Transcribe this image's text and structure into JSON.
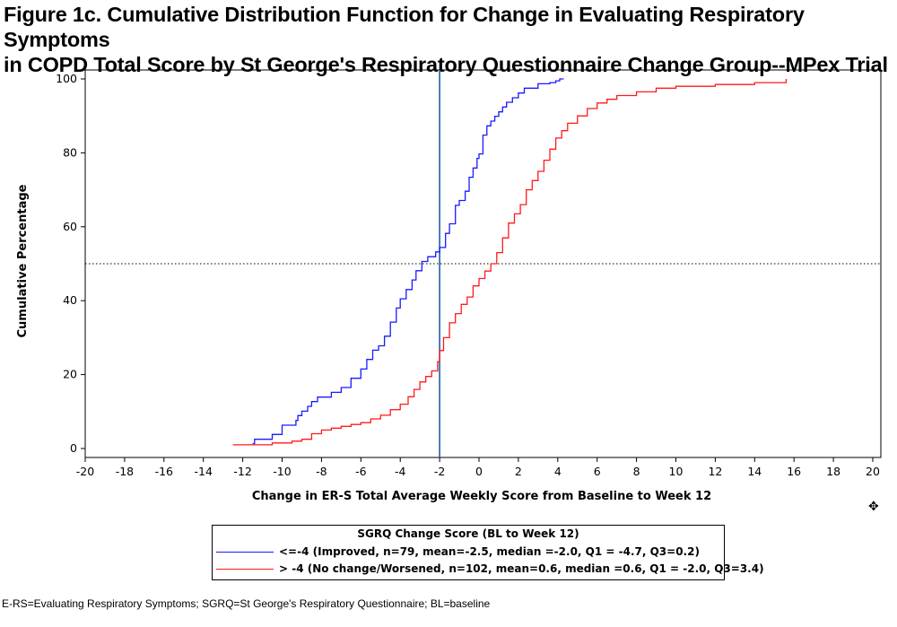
{
  "figure": {
    "title_line1": "Figure 1c. Cumulative Distribution Function for Change in Evaluating Respiratory Symptoms",
    "title_line2": "in COPD Total Score by St George's Respiratory Questionnaire Change Group--MPex Trial",
    "footnote": "E-RS=Evaluating Respiratory Symptoms; SGRQ=St George's Respiratory Questionnaire; BL=baseline",
    "corner_icon": "move-cursor-icon"
  },
  "legend": {
    "title": "SGRQ Change Score (BL to Week 12)",
    "items": [
      {
        "label": "<=-4 (Improved, n=79, mean=-2.5, median =-2.0, Q1 = -4.7, Q3=0.2)",
        "color": "#1a1aff"
      },
      {
        "label": "> -4 (No change/Worsened, n=102, mean=0.6, median =0.6, Q1 = -2.0, Q3=3.4)",
        "color": "#ff1a1a"
      }
    ]
  },
  "chart_data": {
    "type": "line",
    "xlabel": "Change in ER-S Total Average Weekly Score from Baseline to Week 12",
    "ylabel": "Cumulative Percentage",
    "xlim": [
      -20,
      20
    ],
    "ylim": [
      0,
      100
    ],
    "xticks": [
      -20,
      -18,
      -16,
      -14,
      -12,
      -10,
      -8,
      -6,
      -4,
      -2,
      0,
      2,
      4,
      6,
      8,
      10,
      12,
      14,
      16,
      18,
      20
    ],
    "yticks": [
      0,
      20,
      40,
      60,
      80,
      100
    ],
    "reference_lines": [
      {
        "orientation": "vertical",
        "x": -2.0,
        "color": "#1f5fa8",
        "style": "solid"
      },
      {
        "orientation": "horizontal",
        "y": 50,
        "color": "#000000",
        "style": "dotted"
      }
    ],
    "grid": false,
    "legend_position": "bottom",
    "series": [
      {
        "name": "<=-4 (Improved, n=79, mean=-2.5, median =-2.0, Q1 = -4.7, Q3=0.2)",
        "color": "#1a1aff",
        "x": [
          -11.5,
          -11.4,
          -10.5,
          -10.0,
          -10.0,
          -9.3,
          -9.2,
          -9.0,
          -8.7,
          -8.5,
          -8.2,
          -7.5,
          -7.0,
          -6.5,
          -6.0,
          -5.7,
          -5.4,
          -5.1,
          -4.8,
          -4.5,
          -4.2,
          -4.0,
          -3.7,
          -3.4,
          -3.2,
          -2.9,
          -2.6,
          -2.2,
          -2.0,
          -1.7,
          -1.5,
          -1.2,
          -1.0,
          -0.7,
          -0.5,
          -0.3,
          -0.1,
          0.0,
          0.2,
          0.4,
          0.6,
          0.8,
          1.0,
          1.2,
          1.4,
          1.7,
          2.0,
          2.3,
          2.7,
          3.0,
          3.3,
          3.6,
          3.9,
          4.1,
          4.3
        ],
        "values": [
          1.3,
          2.5,
          3.8,
          3.8,
          6.3,
          7.6,
          8.9,
          10.1,
          11.4,
          12.7,
          13.9,
          15.2,
          16.5,
          19.0,
          21.5,
          24.1,
          26.6,
          27.8,
          30.4,
          34.2,
          38.0,
          40.5,
          43.0,
          45.6,
          48.1,
          50.6,
          51.9,
          53.2,
          54.4,
          58.2,
          60.8,
          65.8,
          67.1,
          69.6,
          73.4,
          75.9,
          78.5,
          79.7,
          84.8,
          87.3,
          88.6,
          89.9,
          91.1,
          92.4,
          93.7,
          94.9,
          96.2,
          97.5,
          97.5,
          98.7,
          98.7,
          99.0,
          99.5,
          100,
          100
        ]
      },
      {
        "name": "> -4 (No change/Worsened, n=102, mean=0.6, median =0.6, Q1 = -2.0, Q3=3.4)",
        "color": "#ff1a1a",
        "x": [
          -12.5,
          -11.5,
          -10.5,
          -9.5,
          -9.0,
          -8.5,
          -8.0,
          -7.5,
          -7.0,
          -6.5,
          -6.0,
          -5.5,
          -5.0,
          -4.5,
          -4.0,
          -3.6,
          -3.3,
          -3.0,
          -2.7,
          -2.4,
          -2.1,
          -2.0,
          -1.8,
          -1.5,
          -1.2,
          -0.9,
          -0.6,
          -0.3,
          0.0,
          0.3,
          0.6,
          0.9,
          1.2,
          1.5,
          1.8,
          2.1,
          2.4,
          2.7,
          3.0,
          3.3,
          3.6,
          3.9,
          4.2,
          4.5,
          5.0,
          5.5,
          6.0,
          6.5,
          7.0,
          8.0,
          9.0,
          10.0,
          12.0,
          14.0,
          15.6
        ],
        "values": [
          1.0,
          1.0,
          1.5,
          2.0,
          2.5,
          4.0,
          5.0,
          5.5,
          6.0,
          6.5,
          7.0,
          8.0,
          9.0,
          10.5,
          12.0,
          14.0,
          16.0,
          18.0,
          19.5,
          21.0,
          23.5,
          26.5,
          30.0,
          34.0,
          36.5,
          39.0,
          41.0,
          44.0,
          46.0,
          48.0,
          50.0,
          53.0,
          57.0,
          61.0,
          63.5,
          66.0,
          70.0,
          72.5,
          75.0,
          78.0,
          81.0,
          84.0,
          86.0,
          88.0,
          90.0,
          92.0,
          93.5,
          94.5,
          95.5,
          96.5,
          97.5,
          98.0,
          98.5,
          99.0,
          100
        ]
      }
    ]
  }
}
